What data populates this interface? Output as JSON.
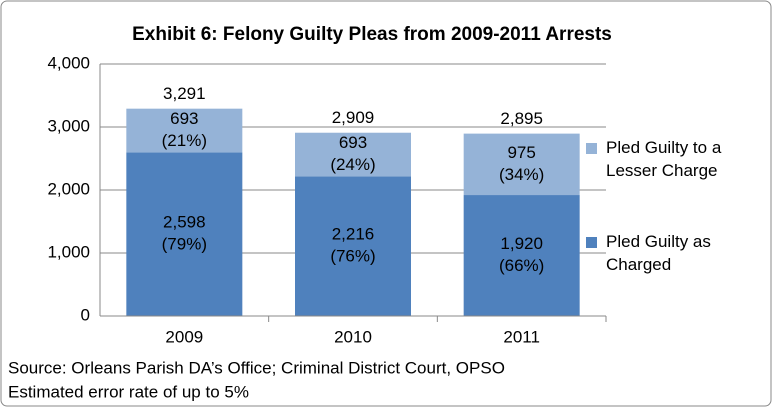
{
  "chart_data": {
    "type": "stacked_bar",
    "title": "Exhibit 6: Felony Guilty Pleas from 2009-2011 Arrests",
    "categories": [
      "2009",
      "2010",
      "2011"
    ],
    "series": [
      {
        "name": "Pled Guilty as Charged",
        "color": "#4f81bd",
        "values": [
          2598,
          2216,
          1920
        ],
        "value_labels": [
          "2,598",
          "2,216",
          "1,920"
        ],
        "percent_labels": [
          "(79%)",
          "(76%)",
          "(66%)"
        ]
      },
      {
        "name": "Pled Guilty to a Lesser Charge",
        "color": "#95b3d7",
        "values": [
          693,
          693,
          975
        ],
        "percent_labels": [
          "(21%)",
          "(24%)",
          "(34%)"
        ]
      }
    ],
    "totals": [
      3291,
      2909,
      2895
    ],
    "total_labels": [
      "3,291",
      "2,909",
      "2,895"
    ],
    "ylim": [
      0,
      4000
    ],
    "yticks": [
      0,
      {
        "value": 1000,
        "label": "1,000"
      },
      {
        "value": 2000,
        "label": "2,000"
      },
      {
        "value": 3000,
        "label": "3,000"
      },
      {
        "value": 4000,
        "label": "4,000"
      }
    ],
    "grid": true,
    "legend": "right",
    "notes": [
      "Source: Orleans Parish DA’s Office; Criminal District Court, OPSO",
      "Estimated error rate of up to 5%"
    ]
  }
}
